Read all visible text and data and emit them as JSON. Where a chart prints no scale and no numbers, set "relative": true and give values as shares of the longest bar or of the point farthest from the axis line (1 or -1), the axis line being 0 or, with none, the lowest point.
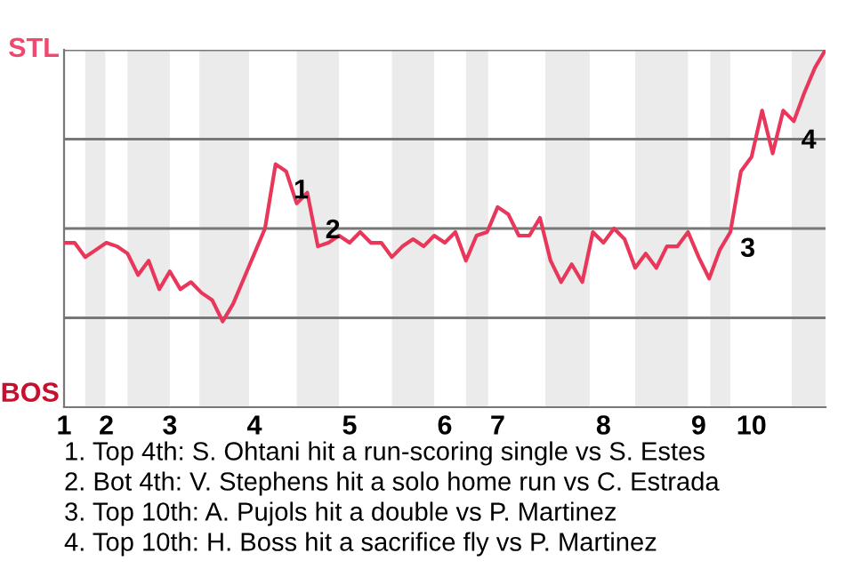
{
  "chart_data": {
    "type": "line",
    "categories": [
      "1",
      null,
      null,
      null,
      "2",
      null,
      null,
      null,
      null,
      null,
      "3",
      null,
      null,
      null,
      null,
      null,
      null,
      null,
      "4",
      null,
      null,
      null,
      null,
      null,
      null,
      null,
      null,
      "5",
      null,
      null,
      null,
      null,
      null,
      null,
      null,
      null,
      "6",
      null,
      null,
      null,
      null,
      "7",
      null,
      null,
      null,
      null,
      null,
      null,
      null,
      null,
      null,
      "8",
      null,
      null,
      null,
      null,
      null,
      null,
      null,
      null,
      "9",
      null,
      null,
      null,
      null,
      "10",
      null,
      null,
      null,
      null,
      null,
      null,
      null
    ],
    "series": [
      {
        "color": "#e8375a",
        "values": [
          0.46,
          0.46,
          0.42,
          0.44,
          0.46,
          0.45,
          0.43,
          0.37,
          0.41,
          0.33,
          0.38,
          0.33,
          0.35,
          0.32,
          0.3,
          0.24,
          0.29,
          0.36,
          0.43,
          0.5,
          0.68,
          0.66,
          0.57,
          0.6,
          0.45,
          0.46,
          0.48,
          0.46,
          0.49,
          0.46,
          0.46,
          0.42,
          0.45,
          0.47,
          0.45,
          0.48,
          0.46,
          0.49,
          0.41,
          0.48,
          0.49,
          0.56,
          0.54,
          0.48,
          0.48,
          0.53,
          0.41,
          0.35,
          0.4,
          0.35,
          0.49,
          0.46,
          0.5,
          0.47,
          0.39,
          0.43,
          0.39,
          0.45,
          0.45,
          0.49,
          0.42,
          0.36,
          0.44,
          0.49,
          0.66,
          0.7,
          0.83,
          0.71,
          0.83,
          0.8,
          0.88,
          0.95,
          1.0
        ]
      }
    ],
    "relative": true,
    "ref_lines": [
      {
        "axis": "y",
        "value": 0.25,
        "color": "#777777"
      },
      {
        "axis": "y",
        "value": 0.5,
        "color": "#777777"
      },
      {
        "axis": "y",
        "value": 0.75,
        "color": "#777777"
      },
      {
        "axis": "y",
        "value": 1,
        "color": "#777777"
      }
    ],
    "annotations": [
      "STL",
      "BOS",
      "1",
      "2",
      "3",
      "4",
      "1. Top 4th: S. Ohtani hit a run-scoring single vs S. Estes",
      "2. Bot 4th: V. Stephens hit a solo home run vs C. Estrada",
      "3. Top 10th: A. Pujols hit a double vs P. Martinez",
      "4. Top 10th: H. Boss hit a sacrifice fly vs P. Martinez"
    ]
  }
}
